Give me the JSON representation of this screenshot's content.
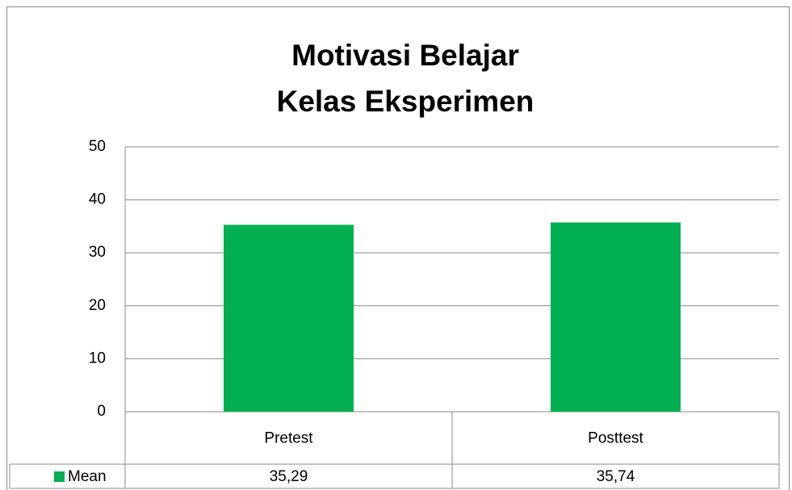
{
  "chart_data": {
    "type": "bar",
    "title": [
      "Motivasi Belajar",
      "Kelas Eksperimen"
    ],
    "categories": [
      "Pretest",
      "Posttest"
    ],
    "series": [
      {
        "name": "Mean",
        "color": "#00b050",
        "values": [
          35.29,
          35.74
        ],
        "value_labels": [
          "35,29",
          "35,74"
        ]
      }
    ],
    "ylim": [
      0,
      50
    ],
    "yticks": [
      0,
      10,
      20,
      30,
      40,
      50
    ],
    "grid": true,
    "data_table": true
  }
}
